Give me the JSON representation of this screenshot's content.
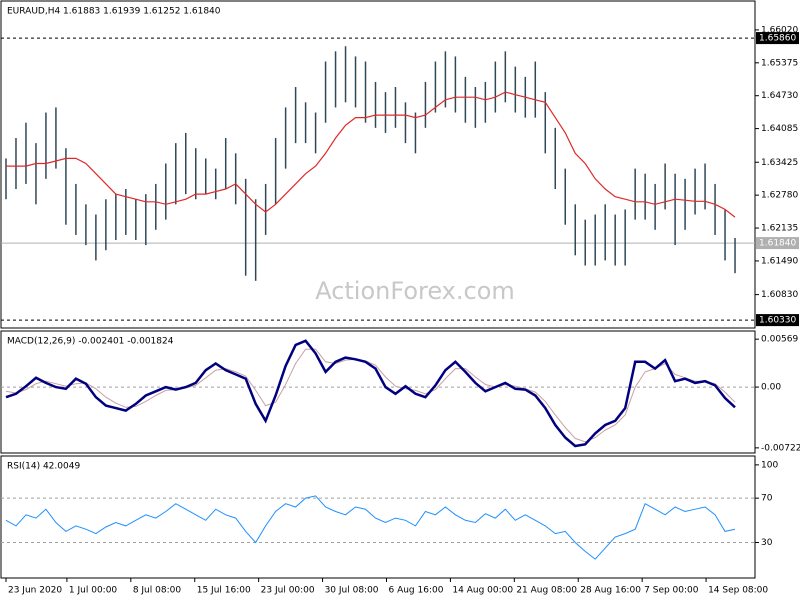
{
  "chart_data": [
    {
      "type": "bar-range",
      "title": "EURAUD,H4  1.61883 1.61939 1.61252 1.61840",
      "watermark": "ActionForex.com",
      "ylim": [
        1.60175,
        1.66587
      ],
      "yticks": [
        {
          "value": 1.6602,
          "label": "1.66020"
        },
        1.65375,
        {
          "value": 1.6473,
          "label": "1.64730"
        },
        1.64085,
        1.63425,
        {
          "value": 1.6278,
          "label": "1.62780"
        },
        1.62135,
        {
          "value": 1.6149,
          "label": "1.61490"
        },
        {
          "value": 1.6083,
          "label": "1.60830"
        }
      ],
      "levels": [
        {
          "value": 1.6586,
          "label": "1.65860",
          "style": "dashed",
          "color": "#000000"
        },
        {
          "value": 1.6184,
          "label": "1.61840",
          "style": "solid",
          "color": "#b0b0b0"
        },
        {
          "value": 1.6033,
          "label": "1.60330",
          "style": "dashed",
          "color": "#000000"
        }
      ],
      "series": [
        {
          "kind": "range",
          "color": "#2f4858",
          "high": [
            1.635,
            1.639,
            1.642,
            1.638,
            1.644,
            1.645,
            1.637,
            1.63,
            1.626,
            1.624,
            1.627,
            1.628,
            1.629,
            1.627,
            1.628,
            1.63,
            1.634,
            1.638,
            1.64,
            1.637,
            1.635,
            1.633,
            1.639,
            1.636,
            1.631,
            1.627,
            1.63,
            1.639,
            1.645,
            1.649,
            1.646,
            1.644,
            1.654,
            1.656,
            1.657,
            1.655,
            1.654,
            1.65,
            1.648,
            1.649,
            1.646,
            1.644,
            1.65,
            1.654,
            1.656,
            1.655,
            1.651,
            1.649,
            1.65,
            1.654,
            1.656,
            1.653,
            1.651,
            1.654,
            1.648,
            1.641,
            1.633,
            1.626,
            1.623,
            1.624,
            1.626,
            1.624,
            1.625,
            1.633,
            1.632,
            1.63,
            1.634,
            1.632,
            1.631,
            1.633,
            1.634,
            1.63,
            1.625,
            1.6194
          ],
          "low": [
            1.627,
            1.629,
            1.63,
            1.626,
            1.631,
            1.633,
            1.622,
            1.62,
            1.618,
            1.615,
            1.617,
            1.619,
            1.62,
            1.619,
            1.618,
            1.621,
            1.623,
            1.626,
            1.628,
            1.627,
            1.628,
            1.627,
            1.629,
            1.626,
            1.612,
            1.611,
            1.62,
            1.626,
            1.633,
            1.638,
            1.638,
            1.636,
            1.642,
            1.645,
            1.646,
            1.645,
            1.642,
            1.641,
            1.64,
            1.641,
            1.638,
            1.636,
            1.641,
            1.644,
            1.645,
            1.644,
            1.642,
            1.641,
            1.642,
            1.644,
            1.646,
            1.644,
            1.643,
            1.643,
            1.636,
            1.629,
            1.622,
            1.616,
            1.614,
            1.614,
            1.615,
            1.614,
            1.614,
            1.623,
            1.623,
            1.621,
            1.625,
            1.618,
            1.621,
            1.624,
            1.625,
            1.62,
            1.615,
            1.6125
          ]
        },
        {
          "kind": "line",
          "color": "#e02828",
          "values": [
            1.6335,
            1.6335,
            1.6335,
            1.634,
            1.634,
            1.6345,
            1.635,
            1.635,
            1.634,
            1.632,
            1.63,
            1.628,
            1.6275,
            1.627,
            1.6265,
            1.6265,
            1.626,
            1.6265,
            1.627,
            1.628,
            1.628,
            1.6285,
            1.629,
            1.63,
            1.628,
            1.626,
            1.6245,
            1.626,
            1.628,
            1.63,
            1.632,
            1.6335,
            1.636,
            1.639,
            1.6415,
            1.643,
            1.643,
            1.6435,
            1.6435,
            1.6435,
            1.6435,
            1.643,
            1.6435,
            1.645,
            1.6465,
            1.647,
            1.647,
            1.647,
            1.6465,
            1.647,
            1.648,
            1.6475,
            1.647,
            1.6465,
            1.646,
            1.643,
            1.64,
            1.636,
            1.634,
            1.631,
            1.629,
            1.6275,
            1.627,
            1.6265,
            1.6265,
            1.626,
            1.6265,
            1.627,
            1.6268,
            1.6266,
            1.6266,
            1.626,
            1.625,
            1.6235
          ]
        }
      ]
    },
    {
      "type": "line",
      "title": "MACD(12,26,9) -0.002401 -0.001824",
      "ylim": [
        -0.00783,
        0.00666
      ],
      "yticks": [
        0.00569,
        {
          "value": 0,
          "label": "0.00"
        },
        -0.00722
      ],
      "levels": [
        {
          "value": 0,
          "style": "dashed",
          "color": "#a0a0a0"
        }
      ],
      "series": [
        {
          "color": "#c8a0a0",
          "width": 1,
          "values": [
            -0.0005,
            -0.0007,
            -0.0003,
            0.0004,
            0.0007,
            0.0004,
            0.0001,
            0.0004,
            0.0005,
            -0.0002,
            -0.0012,
            -0.0019,
            -0.0024,
            -0.0023,
            -0.0017,
            -0.001,
            -0.0004,
            -0.0003,
            -0.0001,
            0.0002,
            0.0011,
            0.002,
            0.0022,
            0.0018,
            0.0013,
            -0.0004,
            -0.0022,
            -0.0018,
            0.0003,
            0.0028,
            0.0045,
            0.0045,
            0.003,
            0.0028,
            0.0032,
            0.0033,
            0.0031,
            0.0026,
            0.0012,
            0.0001,
            -0.0002,
            -0.0004,
            -0.0008,
            -0.0003,
            0.001,
            0.0022,
            0.0022,
            0.0012,
            0.0003,
            0,
            0.0003,
            0.0001,
            -0.0002,
            -0.0006,
            -0.0017,
            -0.0033,
            -0.0048,
            -0.0061,
            -0.0065,
            -0.006,
            -0.0051,
            -0.0045,
            -0.0033,
            0,
            0.0018,
            0.0022,
            0.0028,
            0.0015,
            0.0011,
            0.0007,
            0.0007,
            0.0004,
            -0.0006,
            -0.0018
          ]
        },
        {
          "color": "#000080",
          "width": 2.5,
          "values": [
            -0.0012,
            -0.0008,
            0.0001,
            0.0011,
            0.0005,
            0,
            -0.0002,
            0.001,
            0.0004,
            -0.0012,
            -0.0022,
            -0.0025,
            -0.0028,
            -0.002,
            -0.001,
            -0.0005,
            0,
            -0.0003,
            0,
            0.0005,
            0.002,
            0.0028,
            0.002,
            0.0015,
            0.001,
            -0.002,
            -0.004,
            -0.001,
            0.0025,
            0.005,
            0.0055,
            0.004,
            0.0018,
            0.003,
            0.0035,
            0.0033,
            0.003,
            0.0022,
            0,
            -0.0008,
            0.0001,
            -0.0008,
            -0.0012,
            0.0002,
            0.002,
            0.003,
            0.0018,
            0.0005,
            -0.0005,
            0,
            0.0005,
            -0.0002,
            -0.0003,
            -0.001,
            -0.0025,
            -0.0045,
            -0.006,
            -0.007,
            -0.0068,
            -0.0055,
            -0.0045,
            -0.004,
            -0.0025,
            0.003,
            0.003,
            0.0022,
            0.0032,
            0.0007,
            0.001,
            0.0005,
            0.0007,
            0.0002,
            -0.0013,
            -0.0024
          ]
        }
      ]
    },
    {
      "type": "line",
      "title": "RSI(14) 42.0049",
      "ylim": [
        -2,
        108
      ],
      "yticks": [
        100,
        70,
        30
      ],
      "levels": [
        {
          "value": 70,
          "style": "dashed",
          "color": "#a0a0a0"
        },
        {
          "value": 30,
          "style": "dashed",
          "color": "#a0a0a0"
        }
      ],
      "series": [
        {
          "color": "#1e90ff",
          "width": 1,
          "values": [
            50,
            45,
            55,
            52,
            60,
            48,
            40,
            45,
            42,
            38,
            44,
            48,
            45,
            50,
            55,
            52,
            58,
            65,
            60,
            55,
            50,
            60,
            55,
            52,
            40,
            30,
            45,
            58,
            65,
            62,
            70,
            72,
            62,
            58,
            55,
            62,
            60,
            52,
            48,
            52,
            50,
            45,
            58,
            55,
            62,
            55,
            50,
            48,
            56,
            52,
            60,
            50,
            55,
            50,
            45,
            38,
            40,
            30,
            22,
            15,
            25,
            35,
            38,
            42,
            65,
            60,
            55,
            62,
            58,
            60,
            62,
            55,
            40,
            42
          ]
        }
      ],
      "xlim": [
        0,
        75.5
      ],
      "xticks": [
        {
          "value": 0.5,
          "label": "23 Jun 2020"
        },
        {
          "value": 6.6,
          "label": "1 Jul 00:00"
        },
        {
          "value": 13,
          "label": "8 Jul 08:00"
        },
        {
          "value": 19.4,
          "label": "15 Jul 16:00"
        },
        {
          "value": 25.8,
          "label": "23 Jul 00:00"
        },
        {
          "value": 32.2,
          "label": "30 Jul 08:00"
        },
        {
          "value": 38.6,
          "label": "6 Aug 16:00"
        },
        {
          "value": 45,
          "label": "14 Aug 00:00"
        },
        {
          "value": 51.4,
          "label": "21 Aug 08:00"
        },
        {
          "value": 57.8,
          "label": "28 Aug 16:00"
        },
        {
          "value": 64.2,
          "label": "7 Sep 00:00"
        },
        {
          "value": 70.6,
          "label": "14 Sep 08:00"
        }
      ]
    }
  ]
}
